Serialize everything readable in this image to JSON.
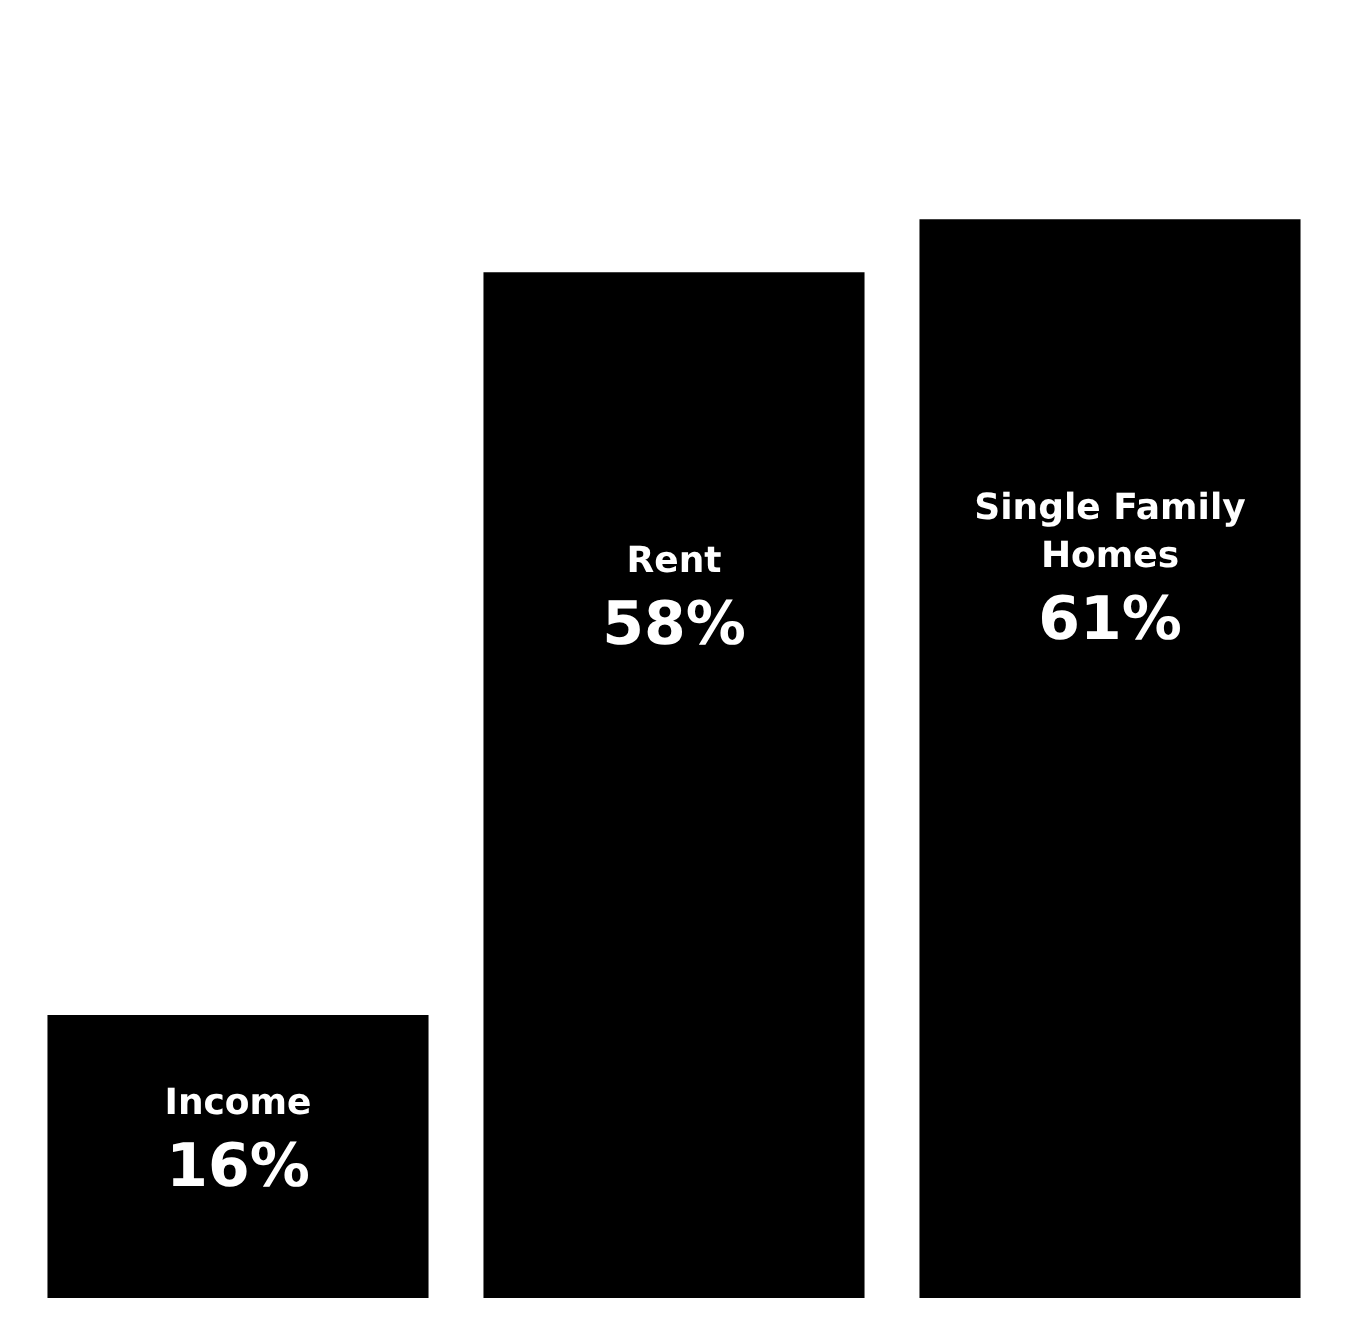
{
  "chart_data": {
    "type": "bar",
    "categories": [
      "Income",
      "Rent",
      "Single Family Homes"
    ],
    "values": [
      16,
      58,
      61
    ],
    "value_labels": [
      "16%",
      "58%",
      "61%"
    ],
    "color": "#000000",
    "tick_labels": false,
    "legend": false
  }
}
